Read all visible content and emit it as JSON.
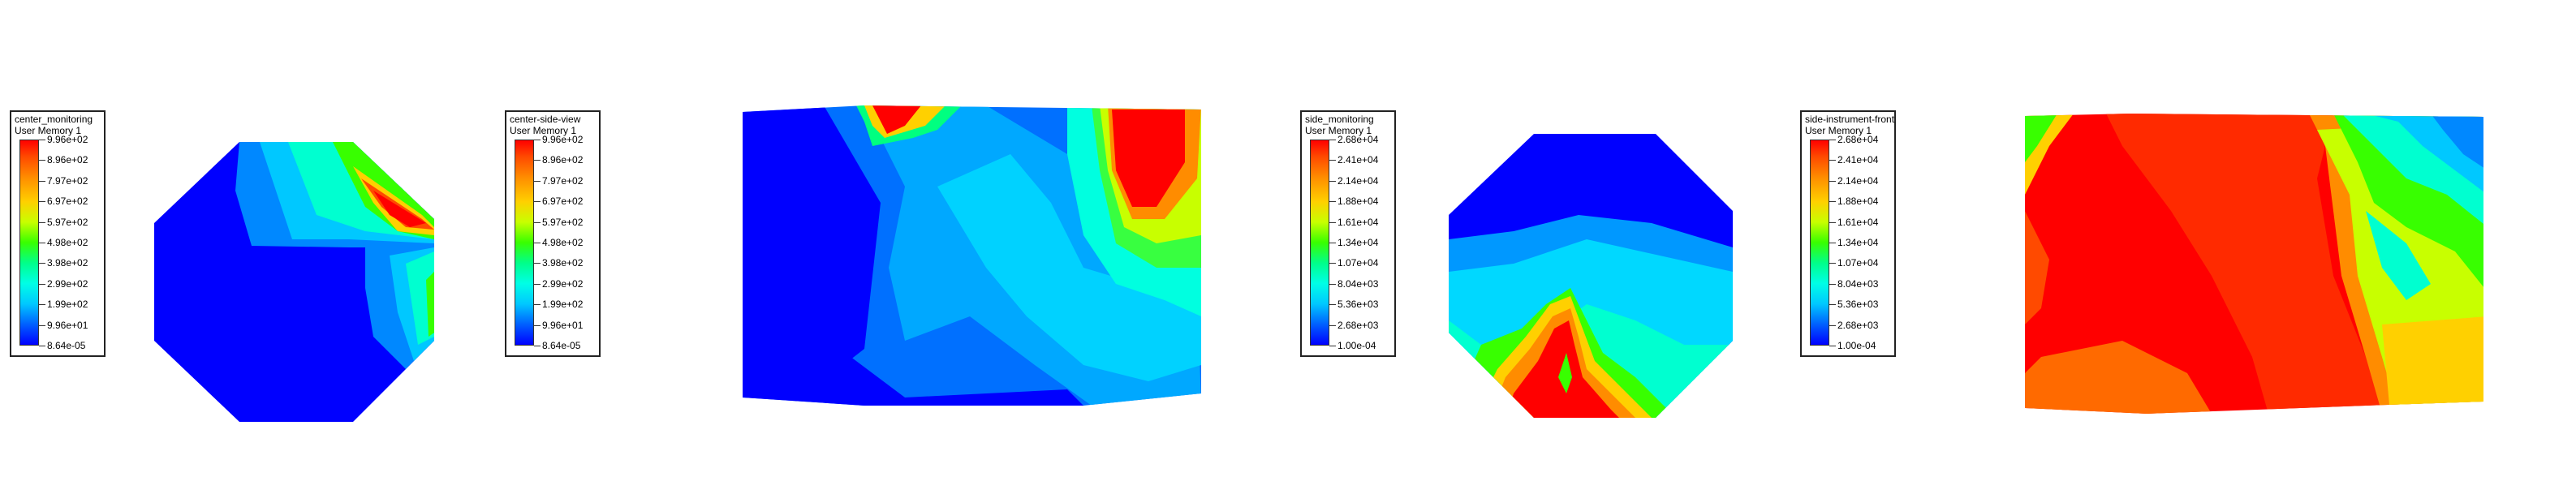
{
  "legends": [
    {
      "title": "center_monitoring",
      "subtitle": "User Memory 1",
      "labels": [
        "9.96e+02",
        "8.96e+02",
        "7.97e+02",
        "6.97e+02",
        "5.97e+02",
        "4.98e+02",
        "3.98e+02",
        "2.99e+02",
        "1.99e+02",
        "9.96e+01",
        "8.64e-05"
      ]
    },
    {
      "title": "center-side-view",
      "subtitle": "User Memory 1",
      "labels": [
        "9.96e+02",
        "8.96e+02",
        "7.97e+02",
        "6.97e+02",
        "5.97e+02",
        "4.98e+02",
        "3.98e+02",
        "2.99e+02",
        "1.99e+02",
        "9.96e+01",
        "8.64e-05"
      ]
    },
    {
      "title": "side_monitoring",
      "subtitle": "User Memory 1",
      "labels": [
        "2.68e+04",
        "2.41e+04",
        "2.14e+04",
        "1.88e+04",
        "1.61e+04",
        "1.34e+04",
        "1.07e+04",
        "8.04e+03",
        "5.36e+03",
        "2.68e+03",
        "1.00e-04"
      ]
    },
    {
      "title": "side-instrument-front",
      "subtitle": "User Memory 1",
      "labels": [
        "2.68e+04",
        "2.41e+04",
        "2.14e+04",
        "1.88e+04",
        "1.61e+04",
        "1.34e+04",
        "1.07e+04",
        "8.04e+03",
        "5.36e+03",
        "2.68e+03",
        "1.00e-04"
      ]
    }
  ],
  "colormap": [
    "#ff0000",
    "#ff8c00",
    "#ffd000",
    "#38ff00",
    "#00ffe6",
    "#00c8ff",
    "#0060ff",
    "#0000ff"
  ]
}
